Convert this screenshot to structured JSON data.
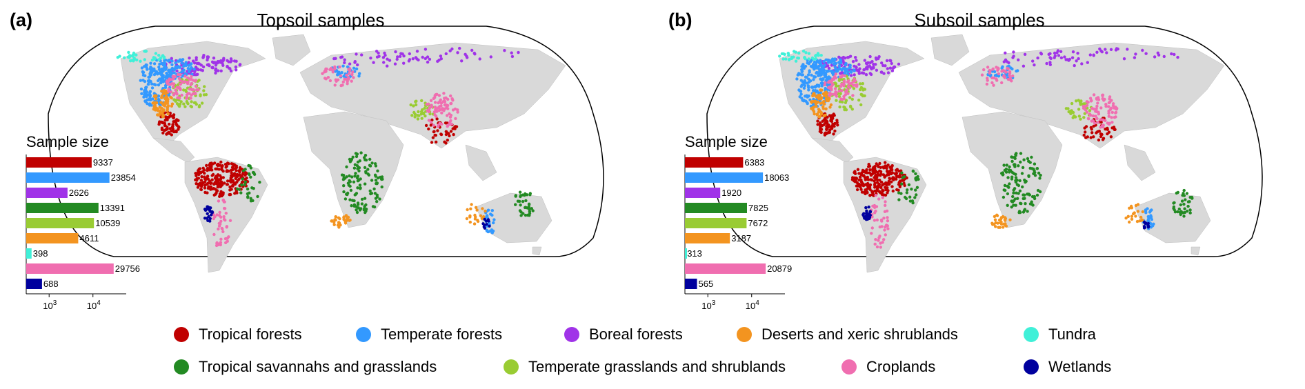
{
  "panels": [
    {
      "letter": "(a)",
      "title": "Topsoil samples",
      "inset_title": "Sample size"
    },
    {
      "letter": "(b)",
      "title": "Subsoil samples",
      "inset_title": "Sample size"
    }
  ],
  "legend": [
    {
      "label": "Tropical forests",
      "color": "#c00000"
    },
    {
      "label": "Temperate forests",
      "color": "#3399ff"
    },
    {
      "label": "Boreal forests",
      "color": "#a033e8"
    },
    {
      "label": "Deserts and xeric shrublands",
      "color": "#f39420"
    },
    {
      "label": "Tundra",
      "color": "#40f0d8"
    },
    {
      "label": "Tropical savannahs and grasslands",
      "color": "#238a23"
    },
    {
      "label": "Temperate grasslands and shrublands",
      "color": "#99cc33"
    },
    {
      "label": "Croplands",
      "color": "#f06eb0"
    },
    {
      "label": "Wetlands",
      "color": "#00009e"
    }
  ],
  "chart_data": [
    {
      "type": "bar",
      "orientation": "horizontal",
      "title": "Sample size",
      "panel_title": "Topsoil samples",
      "x_scale": "log",
      "xticks": [
        "10^3",
        "10^4"
      ],
      "categories": [
        "Tropical forests",
        "Temperate forests",
        "Boreal forests",
        "Tropical savannahs and grasslands",
        "Temperate grasslands and shrublands",
        "Deserts and xeric shrublands",
        "Tundra",
        "Croplands",
        "Wetlands"
      ],
      "values": [
        9337,
        23854,
        2626,
        13391,
        10539,
        4611,
        398,
        29756,
        688
      ],
      "colors": [
        "#c00000",
        "#3399ff",
        "#a033e8",
        "#238a23",
        "#99cc33",
        "#f39420",
        "#40f0d8",
        "#f06eb0",
        "#00009e"
      ]
    },
    {
      "type": "bar",
      "orientation": "horizontal",
      "title": "Sample size",
      "panel_title": "Subsoil samples",
      "x_scale": "log",
      "xticks": [
        "10^3",
        "10^4"
      ],
      "categories": [
        "Tropical forests",
        "Temperate forests",
        "Boreal forests",
        "Tropical savannahs and grasslands",
        "Temperate grasslands and shrublands",
        "Deserts and xeric shrublands",
        "Tundra",
        "Croplands",
        "Wetlands"
      ],
      "values": [
        6383,
        18063,
        1920,
        7825,
        7672,
        3187,
        313,
        20879,
        565
      ],
      "colors": [
        "#c00000",
        "#3399ff",
        "#a033e8",
        "#238a23",
        "#99cc33",
        "#f39420",
        "#40f0d8",
        "#f06eb0",
        "#00009e"
      ]
    }
  ]
}
